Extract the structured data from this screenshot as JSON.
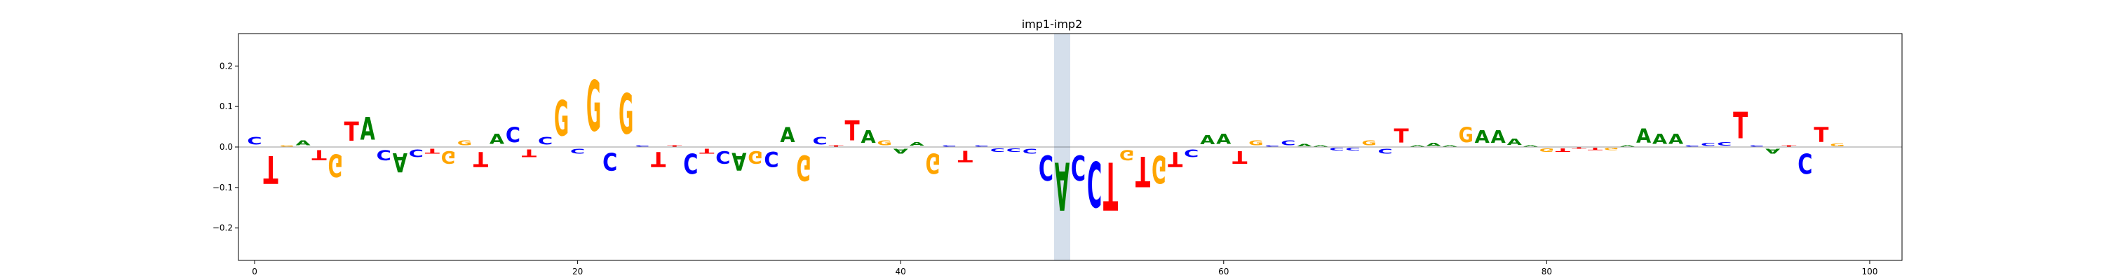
{
  "chart_data": {
    "type": "sequence-logo",
    "title": "imp1-imp2",
    "xlabel": "",
    "ylabel": "",
    "xlim": [
      -1,
      102
    ],
    "ylim": [
      -0.28,
      0.28
    ],
    "x_ticks": [
      0,
      20,
      40,
      60,
      80,
      100
    ],
    "y_ticks": [
      -0.2,
      -0.1,
      0.0,
      0.1,
      0.2
    ],
    "x_tick_labels": [
      "0",
      "20",
      "40",
      "60",
      "80",
      "100"
    ],
    "y_tick_labels": [
      "−0.2",
      "−0.1",
      "0.0",
      "0.1",
      "0.2"
    ],
    "highlight_region": [
      50,
      51
    ],
    "highlight_color": "#d5dfeb",
    "letter_colors": {
      "A": "#008000",
      "C": "#0000ff",
      "G": "#ffa500",
      "T": "#ff0000"
    },
    "positions": [
      {
        "x": 0,
        "letter": "C",
        "value": 0.03
      },
      {
        "x": 1,
        "letter": "T",
        "value": -0.11
      },
      {
        "x": 2,
        "letter": "G",
        "value": 0.005
      },
      {
        "x": 3,
        "letter": "A",
        "value": 0.02
      },
      {
        "x": 4,
        "letter": "T",
        "value": -0.04
      },
      {
        "x": 5,
        "letter": "G",
        "value": -0.09
      },
      {
        "x": 6,
        "letter": "T",
        "value": 0.075
      },
      {
        "x": 7,
        "letter": "A",
        "value": 0.09
      },
      {
        "x": 8,
        "letter": "C",
        "value": -0.04
      },
      {
        "x": 9,
        "letter": "A",
        "value": -0.075
      },
      {
        "x": 10,
        "letter": "C",
        "value": -0.03
      },
      {
        "x": 11,
        "letter": "T",
        "value": -0.02
      },
      {
        "x": 12,
        "letter": "G",
        "value": -0.05
      },
      {
        "x": 13,
        "letter": "G",
        "value": 0.02
      },
      {
        "x": 14,
        "letter": "T",
        "value": -0.06
      },
      {
        "x": 15,
        "letter": "A",
        "value": 0.04
      },
      {
        "x": 16,
        "letter": "C",
        "value": 0.06
      },
      {
        "x": 17,
        "letter": "T",
        "value": -0.03
      },
      {
        "x": 18,
        "letter": "C",
        "value": 0.03
      },
      {
        "x": 19,
        "letter": "G",
        "value": 0.14
      },
      {
        "x": 20,
        "letter": "C",
        "value": -0.02
      },
      {
        "x": 21,
        "letter": "G",
        "value": 0.2
      },
      {
        "x": 22,
        "letter": "C",
        "value": -0.07
      },
      {
        "x": 23,
        "letter": "G",
        "value": 0.16
      },
      {
        "x": 24,
        "letter": "C",
        "value": 0.005
      },
      {
        "x": 25,
        "letter": "T",
        "value": -0.06
      },
      {
        "x": 26,
        "letter": "T",
        "value": 0.005
      },
      {
        "x": 27,
        "letter": "C",
        "value": -0.08
      },
      {
        "x": 28,
        "letter": "T",
        "value": -0.02
      },
      {
        "x": 29,
        "letter": "C",
        "value": -0.05
      },
      {
        "x": 30,
        "letter": "A",
        "value": -0.07
      },
      {
        "x": 31,
        "letter": "G",
        "value": -0.05
      },
      {
        "x": 32,
        "letter": "C",
        "value": -0.06
      },
      {
        "x": 33,
        "letter": "A",
        "value": 0.06
      },
      {
        "x": 34,
        "letter": "G",
        "value": -0.1
      },
      {
        "x": 35,
        "letter": "C",
        "value": 0.03
      },
      {
        "x": 36,
        "letter": "T",
        "value": 0.005
      },
      {
        "x": 37,
        "letter": "T",
        "value": 0.08
      },
      {
        "x": 38,
        "letter": "A",
        "value": 0.05
      },
      {
        "x": 39,
        "letter": "G",
        "value": 0.02
      },
      {
        "x": 40,
        "letter": "A",
        "value": -0.02
      },
      {
        "x": 41,
        "letter": "A",
        "value": 0.015
      },
      {
        "x": 42,
        "letter": "G",
        "value": -0.08
      },
      {
        "x": 43,
        "letter": "C",
        "value": 0.005
      },
      {
        "x": 44,
        "letter": "T",
        "value": -0.045
      },
      {
        "x": 45,
        "letter": "C",
        "value": 0.005
      },
      {
        "x": 46,
        "letter": "C",
        "value": -0.015
      },
      {
        "x": 47,
        "letter": "C",
        "value": -0.015
      },
      {
        "x": 48,
        "letter": "C",
        "value": -0.02
      },
      {
        "x": 49,
        "letter": "C",
        "value": -0.1
      },
      {
        "x": 50,
        "letter": "A",
        "value": -0.19
      },
      {
        "x": 51,
        "letter": "C",
        "value": -0.1
      },
      {
        "x": 52,
        "letter": "C",
        "value": -0.18
      },
      {
        "x": 53,
        "letter": "T",
        "value": -0.19
      },
      {
        "x": 54,
        "letter": "G",
        "value": -0.04
      },
      {
        "x": 55,
        "letter": "T",
        "value": -0.12
      },
      {
        "x": 56,
        "letter": "G",
        "value": -0.11
      },
      {
        "x": 57,
        "letter": "T",
        "value": -0.06
      },
      {
        "x": 58,
        "letter": "C",
        "value": -0.03
      },
      {
        "x": 59,
        "letter": "A",
        "value": 0.035
      },
      {
        "x": 60,
        "letter": "A",
        "value": 0.04
      },
      {
        "x": 61,
        "letter": "T",
        "value": -0.05
      },
      {
        "x": 62,
        "letter": "G",
        "value": 0.02
      },
      {
        "x": 63,
        "letter": "C",
        "value": 0.005
      },
      {
        "x": 64,
        "letter": "C",
        "value": 0.02
      },
      {
        "x": 65,
        "letter": "A",
        "value": 0.008
      },
      {
        "x": 66,
        "letter": "A",
        "value": 0.005
      },
      {
        "x": 67,
        "letter": "C",
        "value": -0.01
      },
      {
        "x": 68,
        "letter": "C",
        "value": -0.01
      },
      {
        "x": 69,
        "letter": "G",
        "value": 0.02
      },
      {
        "x": 70,
        "letter": "C",
        "value": -0.02
      },
      {
        "x": 71,
        "letter": "T",
        "value": 0.055
      },
      {
        "x": 72,
        "letter": "A",
        "value": 0.005
      },
      {
        "x": 73,
        "letter": "A",
        "value": 0.012
      },
      {
        "x": 74,
        "letter": "A",
        "value": 0.005
      },
      {
        "x": 75,
        "letter": "G",
        "value": 0.06
      },
      {
        "x": 76,
        "letter": "A",
        "value": 0.05
      },
      {
        "x": 77,
        "letter": "A",
        "value": 0.05
      },
      {
        "x": 78,
        "letter": "A",
        "value": 0.025
      },
      {
        "x": 79,
        "letter": "A",
        "value": 0.005
      },
      {
        "x": 80,
        "letter": "G",
        "value": -0.015
      },
      {
        "x": 81,
        "letter": "T",
        "value": -0.015
      },
      {
        "x": 82,
        "letter": "T",
        "value": -0.005
      },
      {
        "x": 83,
        "letter": "T",
        "value": -0.008
      },
      {
        "x": 84,
        "letter": "G",
        "value": -0.008
      },
      {
        "x": 85,
        "letter": "A",
        "value": 0.005
      },
      {
        "x": 86,
        "letter": "A",
        "value": 0.055
      },
      {
        "x": 87,
        "letter": "A",
        "value": 0.04
      },
      {
        "x": 88,
        "letter": "A",
        "value": 0.04
      },
      {
        "x": 89,
        "letter": "C",
        "value": 0.005
      },
      {
        "x": 90,
        "letter": "C",
        "value": 0.012
      },
      {
        "x": 91,
        "letter": "C",
        "value": 0.015
      },
      {
        "x": 92,
        "letter": "T",
        "value": 0.105
      },
      {
        "x": 93,
        "letter": "C",
        "value": 0.005
      },
      {
        "x": 94,
        "letter": "A",
        "value": -0.02
      },
      {
        "x": 95,
        "letter": "T",
        "value": 0.005
      },
      {
        "x": 96,
        "letter": "C",
        "value": -0.08
      },
      {
        "x": 97,
        "letter": "T",
        "value": 0.06
      },
      {
        "x": 98,
        "letter": "G",
        "value": 0.01
      }
    ]
  }
}
